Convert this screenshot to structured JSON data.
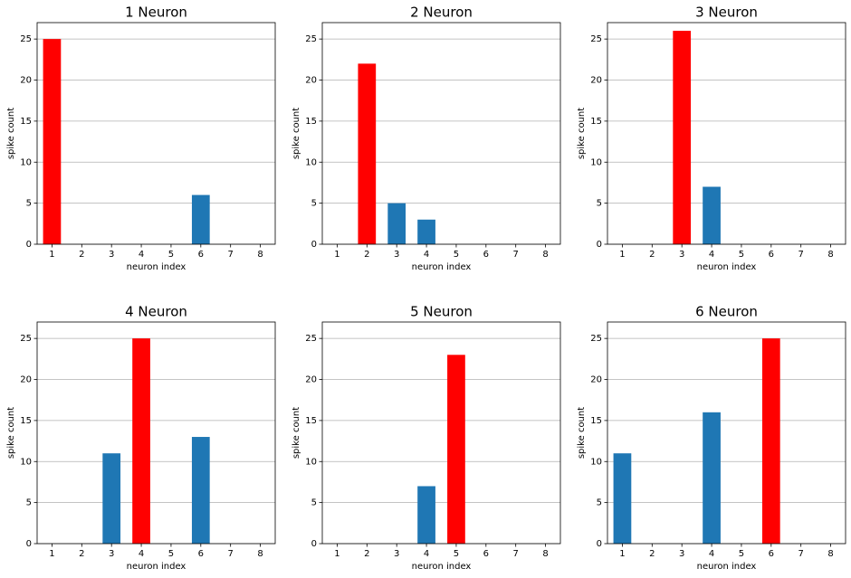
{
  "chart_data": [
    {
      "type": "bar",
      "title": "1 Neuron",
      "x_label": "neuron index",
      "y_label": "spike count",
      "x": [
        1,
        2,
        3,
        4,
        5,
        6,
        7,
        8
      ],
      "values": [
        25,
        0,
        0,
        0,
        0,
        6,
        0,
        0
      ],
      "colors": [
        "#ff0000",
        "#1f77b4",
        "#1f77b4",
        "#1f77b4",
        "#1f77b4",
        "#1f77b4",
        "#1f77b4",
        "#1f77b4"
      ],
      "xlim": [
        0.5,
        8.5
      ],
      "xticks": [
        1,
        2,
        3,
        4,
        5,
        6,
        7,
        8
      ],
      "ylim": [
        0,
        27
      ],
      "yticks": [
        0,
        5,
        10,
        15,
        20,
        25
      ],
      "grid": true
    },
    {
      "type": "bar",
      "title": "2 Neuron",
      "x_label": "neuron index",
      "y_label": "spike count",
      "x": [
        1,
        2,
        3,
        4,
        5,
        6,
        7,
        8
      ],
      "values": [
        0,
        22,
        5,
        3,
        0,
        0,
        0,
        0
      ],
      "colors": [
        "#1f77b4",
        "#ff0000",
        "#1f77b4",
        "#1f77b4",
        "#1f77b4",
        "#1f77b4",
        "#1f77b4",
        "#1f77b4"
      ],
      "xlim": [
        0.5,
        8.5
      ],
      "xticks": [
        1,
        2,
        3,
        4,
        5,
        6,
        7,
        8
      ],
      "ylim": [
        0,
        27
      ],
      "yticks": [
        0,
        5,
        10,
        15,
        20,
        25
      ],
      "grid": true
    },
    {
      "type": "bar",
      "title": "3 Neuron",
      "x_label": "neuron index",
      "y_label": "spike count",
      "x": [
        1,
        2,
        3,
        4,
        5,
        6,
        7,
        8
      ],
      "values": [
        0,
        0,
        26,
        7,
        0,
        0,
        0,
        0
      ],
      "colors": [
        "#1f77b4",
        "#1f77b4",
        "#ff0000",
        "#1f77b4",
        "#1f77b4",
        "#1f77b4",
        "#1f77b4",
        "#1f77b4"
      ],
      "xlim": [
        0.5,
        8.5
      ],
      "xticks": [
        1,
        2,
        3,
        4,
        5,
        6,
        7,
        8
      ],
      "ylim": [
        0,
        27
      ],
      "yticks": [
        0,
        5,
        10,
        15,
        20,
        25
      ],
      "grid": true
    },
    {
      "type": "bar",
      "title": "4 Neuron",
      "x_label": "neuron index",
      "y_label": "spike count",
      "x": [
        1,
        2,
        3,
        4,
        5,
        6,
        7,
        8
      ],
      "values": [
        0,
        0,
        11,
        25,
        0,
        13,
        0,
        0
      ],
      "colors": [
        "#1f77b4",
        "#1f77b4",
        "#1f77b4",
        "#ff0000",
        "#1f77b4",
        "#1f77b4",
        "#1f77b4",
        "#1f77b4"
      ],
      "xlim": [
        0.5,
        8.5
      ],
      "xticks": [
        1,
        2,
        3,
        4,
        5,
        6,
        7,
        8
      ],
      "ylim": [
        0,
        27
      ],
      "yticks": [
        0,
        5,
        10,
        15,
        20,
        25
      ],
      "grid": true
    },
    {
      "type": "bar",
      "title": "5 Neuron",
      "x_label": "neuron index",
      "y_label": "spike count",
      "x": [
        1,
        2,
        3,
        4,
        5,
        6,
        7,
        8
      ],
      "values": [
        0,
        0,
        0,
        7,
        23,
        0,
        0,
        0
      ],
      "colors": [
        "#1f77b4",
        "#1f77b4",
        "#1f77b4",
        "#1f77b4",
        "#ff0000",
        "#1f77b4",
        "#1f77b4",
        "#1f77b4"
      ],
      "xlim": [
        0.5,
        8.5
      ],
      "xticks": [
        1,
        2,
        3,
        4,
        5,
        6,
        7,
        8
      ],
      "ylim": [
        0,
        27
      ],
      "yticks": [
        0,
        5,
        10,
        15,
        20,
        25
      ],
      "grid": true
    },
    {
      "type": "bar",
      "title": "6 Neuron",
      "x_label": "neuron index",
      "y_label": "spike count",
      "x": [
        1,
        2,
        3,
        4,
        5,
        6,
        7,
        8
      ],
      "values": [
        11,
        0,
        0,
        16,
        0,
        25,
        0,
        0
      ],
      "colors": [
        "#1f77b4",
        "#1f77b4",
        "#1f77b4",
        "#1f77b4",
        "#1f77b4",
        "#ff0000",
        "#1f77b4",
        "#1f77b4"
      ],
      "xlim": [
        0.5,
        8.5
      ],
      "xticks": [
        1,
        2,
        3,
        4,
        5,
        6,
        7,
        8
      ],
      "ylim": [
        0,
        27
      ],
      "yticks": [
        0,
        5,
        10,
        15,
        20,
        25
      ],
      "grid": true
    }
  ]
}
